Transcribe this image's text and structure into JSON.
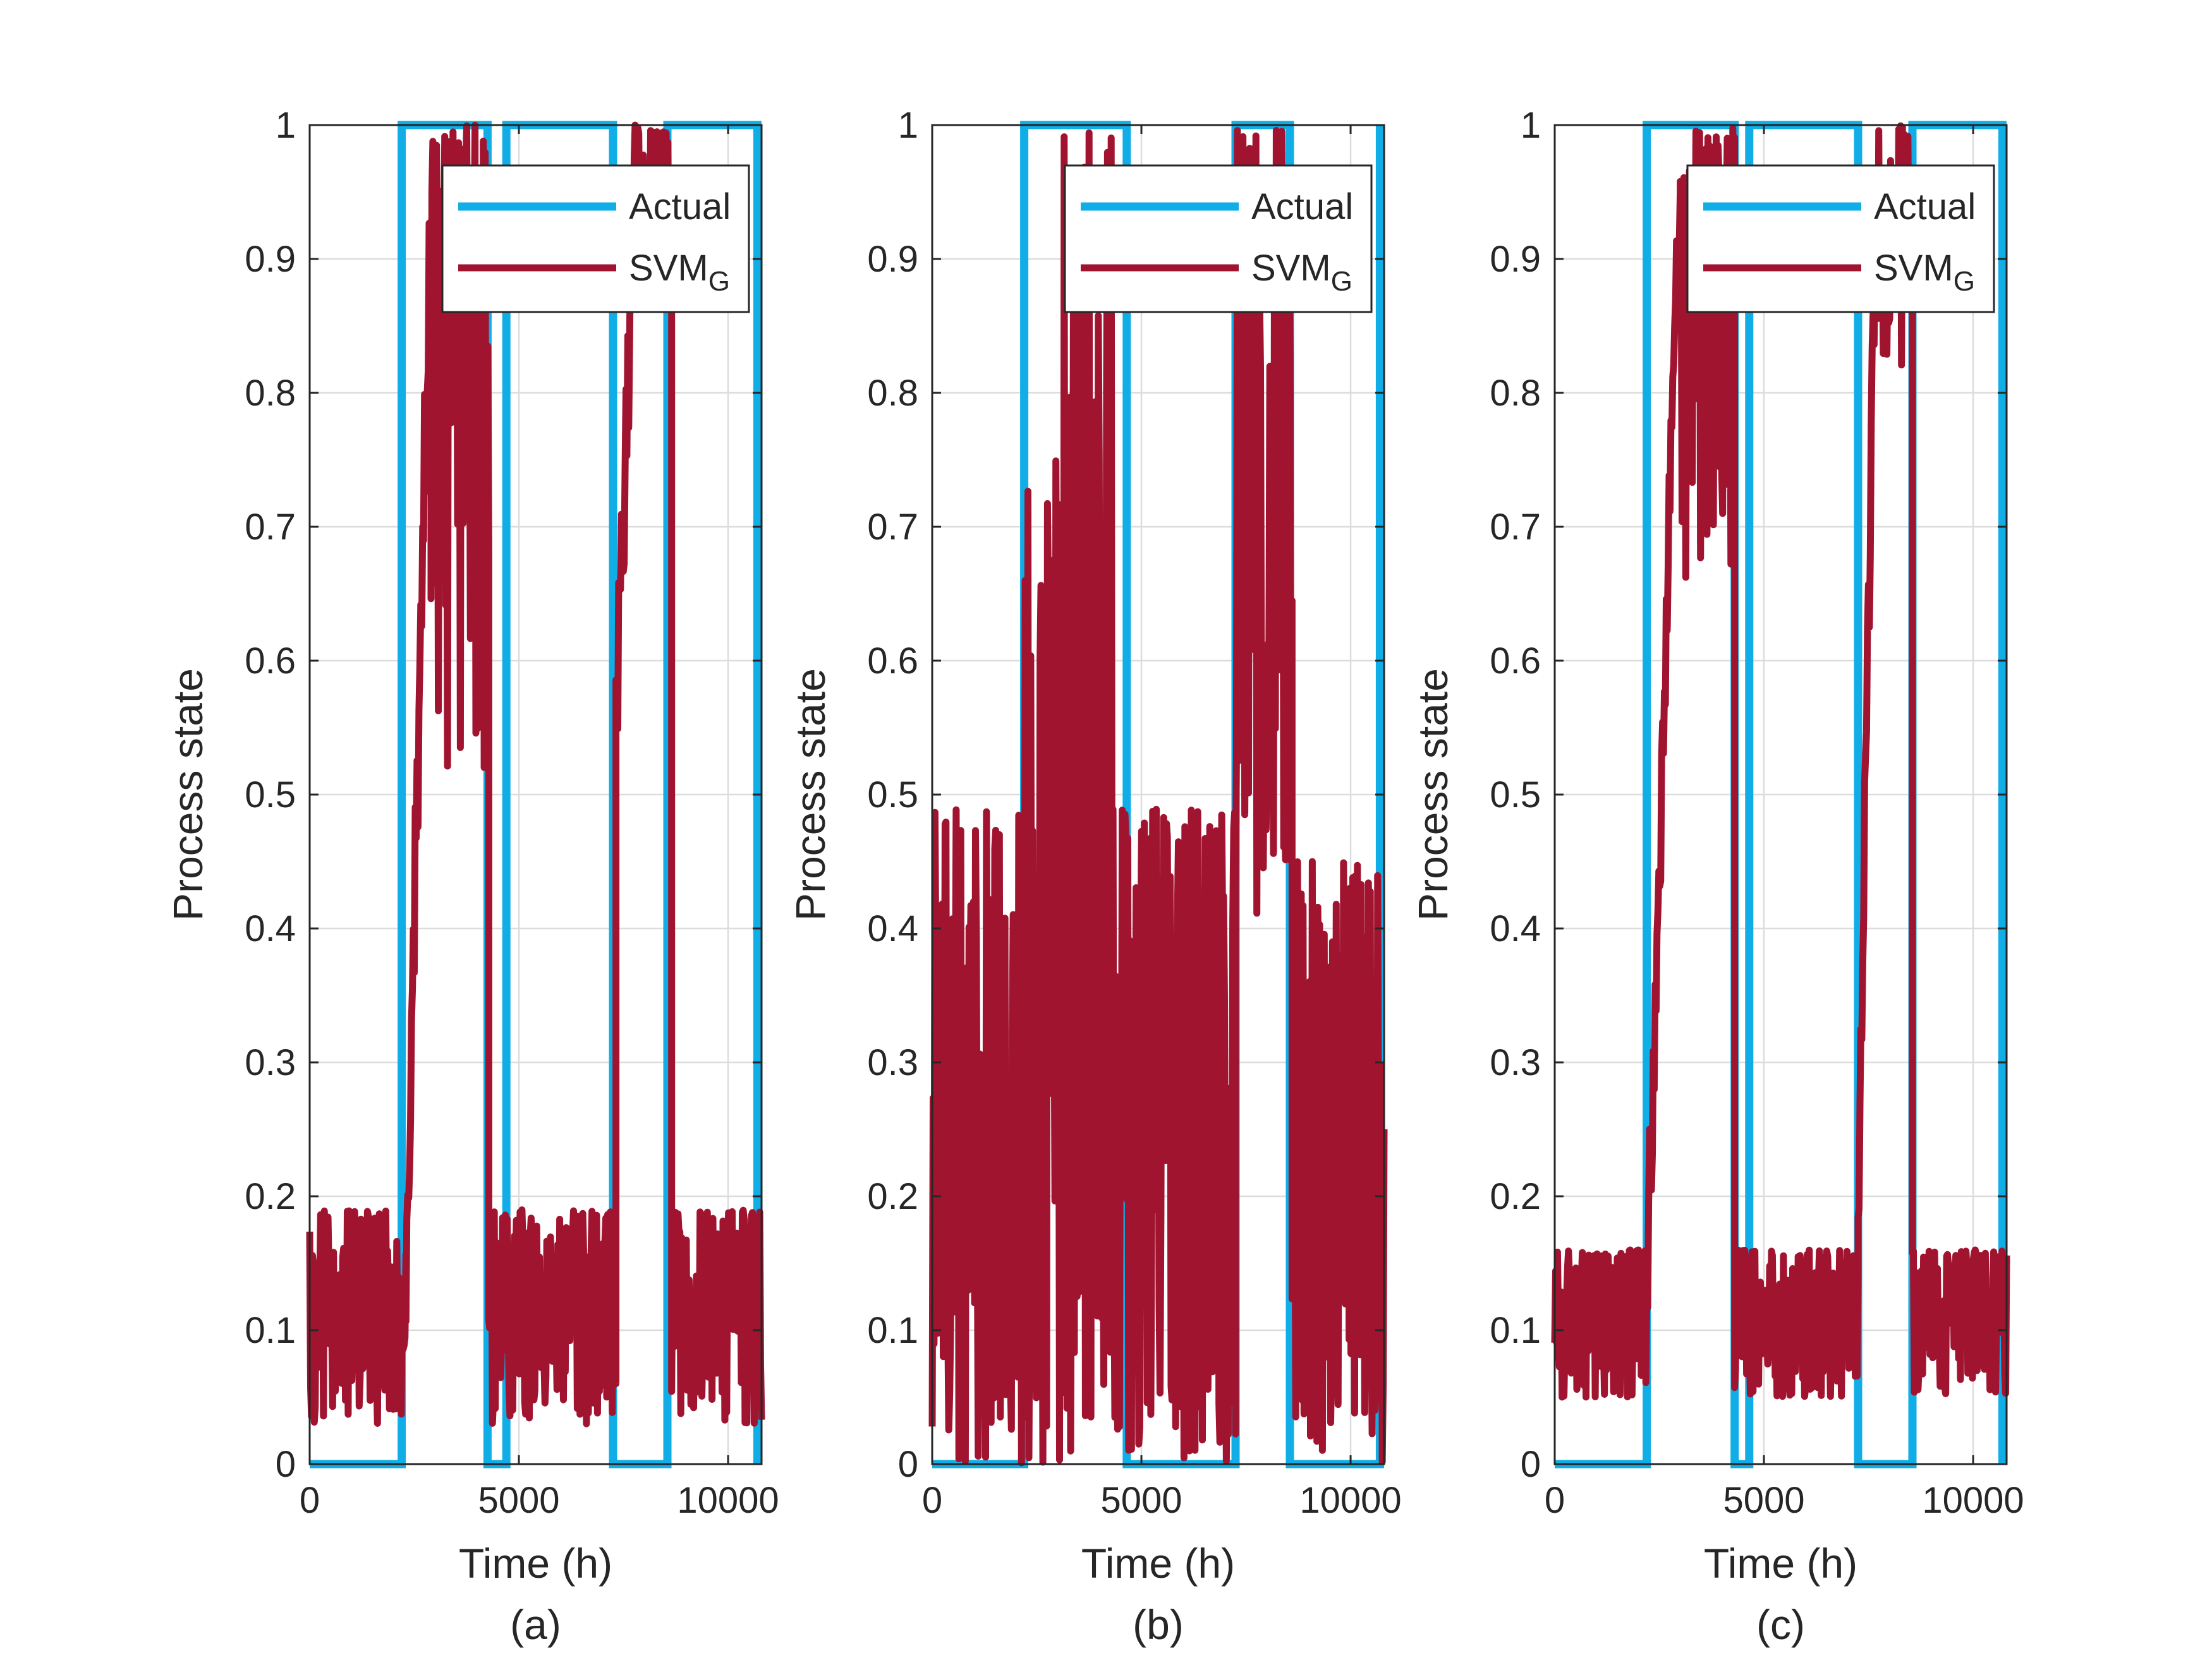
{
  "colors": {
    "actual": "#10ade6",
    "svm": "#a01430",
    "axis": "#262626",
    "grid": "#dcdcdc",
    "background": "#ffffff"
  },
  "chart_data": [
    {
      "type": "line",
      "panel_label": "(a)",
      "xlabel": "Time (h)",
      "ylabel": "Process state",
      "xlim": [
        0,
        10800
      ],
      "ylim": [
        0,
        1
      ],
      "xticks": [
        0,
        5000,
        10000
      ],
      "xtick_labels": [
        "0",
        "5000",
        "10000"
      ],
      "yticks": [
        0,
        0.1,
        0.2,
        0.3,
        0.4,
        0.5,
        0.6,
        0.7,
        0.8,
        0.9,
        1
      ],
      "ytick_labels": [
        "0",
        "0.1",
        "0.2",
        "0.3",
        "0.4",
        "0.5",
        "0.6",
        "0.7",
        "0.8",
        "0.9",
        "1"
      ],
      "grid": true,
      "legend": {
        "placement": "top-right",
        "entries": [
          {
            "label": "Actual",
            "sub": ""
          },
          {
            "label": "SVM",
            "sub": "G"
          }
        ]
      },
      "series": [
        {
          "name": "Actual",
          "x": [
            0,
            2200,
            2200,
            4250,
            4250,
            4700,
            4700,
            7250,
            7250,
            8550,
            8550,
            10700,
            10700
          ],
          "y": [
            0,
            0,
            1,
            1,
            0,
            0,
            1,
            1,
            0,
            0,
            1,
            1,
            0
          ]
        },
        {
          "name": "SVM_G",
          "regions": [
            {
              "x0": 0,
              "x1": 2300,
              "min": 0.03,
              "max": 0.19,
              "seed": 11
            },
            {
              "x0": 2300,
              "x1": 2900,
              "ramp": [
                0.15,
                0.95
              ],
              "spread": 0.12,
              "seed": 12
            },
            {
              "x0": 2900,
              "x1": 4280,
              "min": 0.52,
              "max": 1.0,
              "seed": 13
            },
            {
              "x0": 4280,
              "x1": 7320,
              "min": 0.03,
              "max": 0.19,
              "seed": 14
            },
            {
              "x0": 7320,
              "x1": 7800,
              "ramp": [
                0.55,
                0.98
              ],
              "spread": 0.12,
              "seed": 15
            },
            {
              "x0": 7800,
              "x1": 8650,
              "min": 0.87,
              "max": 1.0,
              "seed": 16
            },
            {
              "x0": 8650,
              "x1": 10800,
              "min": 0.03,
              "max": 0.19,
              "seed": 17
            }
          ]
        }
      ]
    },
    {
      "type": "line",
      "panel_label": "(b)",
      "xlabel": "Time (h)",
      "ylabel": "Process state",
      "xlim": [
        0,
        10800
      ],
      "ylim": [
        0,
        1
      ],
      "xticks": [
        0,
        5000,
        10000
      ],
      "xtick_labels": [
        "0",
        "5000",
        "10000"
      ],
      "yticks": [
        0,
        0.1,
        0.2,
        0.3,
        0.4,
        0.5,
        0.6,
        0.7,
        0.8,
        0.9,
        1
      ],
      "ytick_labels": [
        "0",
        "0.1",
        "0.2",
        "0.3",
        "0.4",
        "0.5",
        "0.6",
        "0.7",
        "0.8",
        "0.9",
        "1"
      ],
      "grid": true,
      "legend": {
        "placement": "top-right",
        "entries": [
          {
            "label": "Actual",
            "sub": ""
          },
          {
            "label": "SVM",
            "sub": "G"
          }
        ]
      },
      "series": [
        {
          "name": "Actual",
          "x": [
            0,
            2200,
            2200,
            4650,
            4650,
            7250,
            7250,
            8550,
            8550,
            10700,
            10700
          ],
          "y": [
            0,
            0,
            1,
            1,
            0,
            0,
            1,
            1,
            0,
            0,
            1
          ]
        },
        {
          "name": "SVM_G",
          "regions": [
            {
              "x0": 0,
              "x1": 2200,
              "min": 0.0,
              "max": 0.49,
              "seed": 21
            },
            {
              "x0": 2200,
              "x1": 3000,
              "min": 0.0,
              "max": 0.75,
              "seed": 22
            },
            {
              "x0": 3000,
              "x1": 4300,
              "min": 0.0,
              "max": 1.0,
              "seed": 23
            },
            {
              "x0": 4300,
              "x1": 7250,
              "min": 0.0,
              "max": 0.49,
              "seed": 24
            },
            {
              "x0": 7250,
              "x1": 8600,
              "min": 0.38,
              "max": 1.0,
              "seed": 25
            },
            {
              "x0": 8600,
              "x1": 10800,
              "min": 0.0,
              "max": 0.45,
              "seed": 26
            }
          ]
        }
      ]
    },
    {
      "type": "line",
      "panel_label": "(c)",
      "xlabel": "Time (h)",
      "ylabel": "Process state",
      "xlim": [
        0,
        10800
      ],
      "ylim": [
        0,
        1
      ],
      "xticks": [
        0,
        5000,
        10000
      ],
      "xtick_labels": [
        "0",
        "5000",
        "10000"
      ],
      "yticks": [
        0,
        0.1,
        0.2,
        0.3,
        0.4,
        0.5,
        0.6,
        0.7,
        0.8,
        0.9,
        1
      ],
      "ytick_labels": [
        "0",
        "0.1",
        "0.2",
        "0.3",
        "0.4",
        "0.5",
        "0.6",
        "0.7",
        "0.8",
        "0.9",
        "1"
      ],
      "grid": true,
      "legend": {
        "placement": "top-right",
        "entries": [
          {
            "label": "Actual",
            "sub": ""
          },
          {
            "label": "SVM",
            "sub": "G"
          }
        ]
      },
      "series": [
        {
          "name": "Actual",
          "x": [
            0,
            2200,
            2200,
            4300,
            4300,
            4650,
            4650,
            7250,
            7250,
            8550,
            8550,
            10700,
            10700
          ],
          "y": [
            0,
            0,
            1,
            1,
            0,
            0,
            1,
            1,
            0,
            0,
            1,
            1,
            0
          ]
        },
        {
          "name": "SVM_G",
          "regions": [
            {
              "x0": 0,
              "x1": 2200,
              "min": 0.05,
              "max": 0.16,
              "seed": 31
            },
            {
              "x0": 2200,
              "x1": 3000,
              "ramp": [
                0.13,
                0.98
              ],
              "spread": 0.1,
              "seed": 32
            },
            {
              "x0": 3000,
              "x1": 4300,
              "min": 0.66,
              "max": 1.0,
              "seed": 33
            },
            {
              "x0": 4300,
              "x1": 7250,
              "min": 0.05,
              "max": 0.16,
              "seed": 34
            },
            {
              "x0": 7250,
              "x1": 7700,
              "ramp": [
                0.2,
                0.98
              ],
              "spread": 0.1,
              "seed": 35
            },
            {
              "x0": 7700,
              "x1": 8550,
              "min": 0.82,
              "max": 1.0,
              "seed": 36
            },
            {
              "x0": 8550,
              "x1": 10800,
              "min": 0.05,
              "max": 0.16,
              "seed": 37
            }
          ]
        }
      ]
    }
  ]
}
